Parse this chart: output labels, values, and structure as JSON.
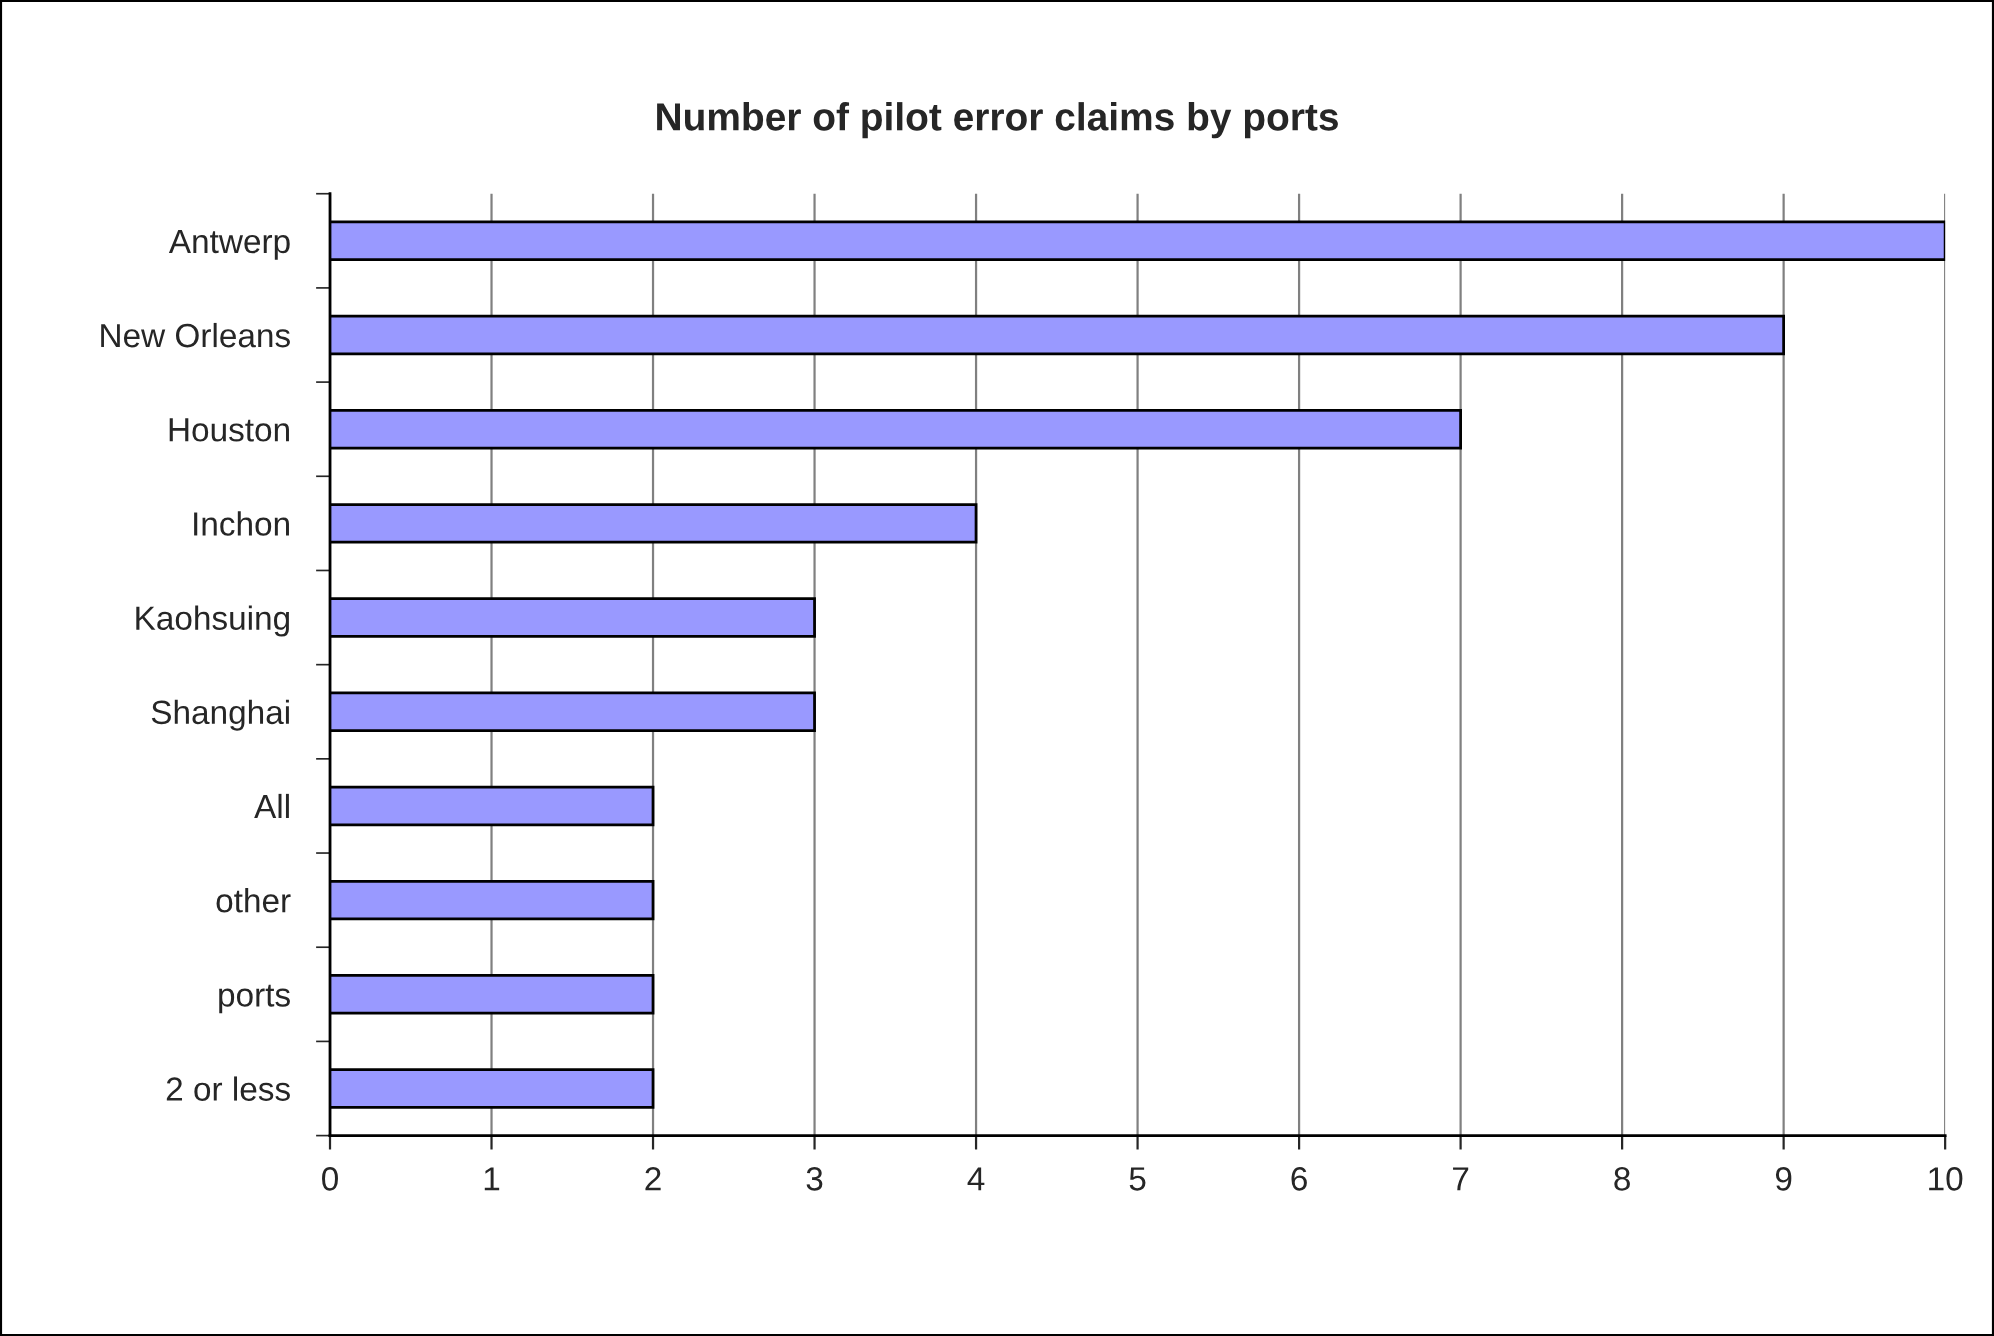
{
  "chart_data": {
    "type": "bar",
    "orientation": "horizontal",
    "title": "Number of pilot error claims by ports",
    "categories": [
      "Antwerp",
      "New Orleans",
      "Houston",
      "Inchon",
      "Kaohsuing",
      "Shanghai",
      "All",
      "other",
      "ports",
      "2 or less"
    ],
    "values": [
      10,
      9,
      7,
      4,
      3,
      3,
      2,
      2,
      2,
      2
    ],
    "color": "#9999ff",
    "xlim": [
      0,
      10
    ],
    "xticks": [
      0,
      1,
      2,
      3,
      4,
      5,
      6,
      7,
      8,
      9,
      10
    ],
    "grid": "x",
    "legend": false
  }
}
